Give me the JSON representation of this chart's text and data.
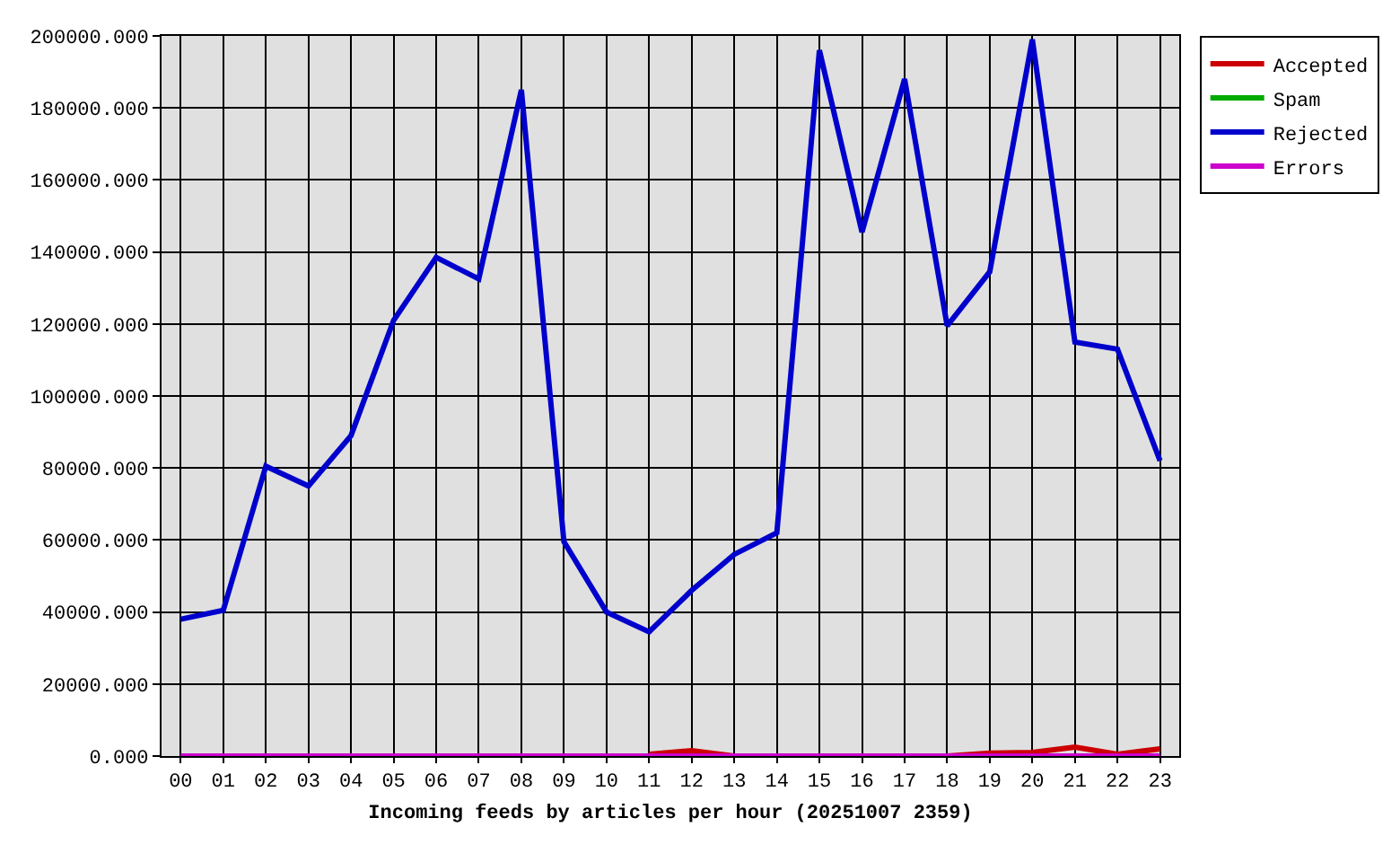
{
  "chart_data": {
    "type": "line",
    "xlabel": "Incoming feeds by articles per hour (20251007 2359)",
    "categories": [
      "00",
      "01",
      "02",
      "03",
      "04",
      "05",
      "06",
      "07",
      "08",
      "09",
      "10",
      "11",
      "12",
      "13",
      "14",
      "15",
      "16",
      "17",
      "18",
      "19",
      "20",
      "21",
      "22",
      "23"
    ],
    "series": [
      {
        "name": "Accepted",
        "color": "#cc0000",
        "values": [
          null,
          null,
          null,
          null,
          null,
          null,
          null,
          null,
          null,
          null,
          null,
          500,
          1500,
          0,
          null,
          null,
          null,
          null,
          0,
          800,
          1000,
          2500,
          500,
          2000
        ]
      },
      {
        "name": "Spam",
        "color": "#00aa00",
        "values": [
          null,
          null,
          null,
          null,
          null,
          null,
          null,
          null,
          null,
          null,
          null,
          null,
          null,
          null,
          null,
          null,
          null,
          null,
          null,
          null,
          null,
          null,
          null,
          null
        ]
      },
      {
        "name": "Rejected",
        "color": "#0000cc",
        "values": [
          38000,
          40500,
          80500,
          75000,
          89000,
          121000,
          138500,
          132500,
          185000,
          59500,
          40000,
          34500,
          46000,
          56000,
          62000,
          196000,
          145500,
          188000,
          119500,
          134500,
          199000,
          115000,
          113000,
          82000
        ]
      },
      {
        "name": "Errors",
        "color": "#cc00cc",
        "values": [
          0,
          0,
          0,
          0,
          0,
          0,
          0,
          0,
          0,
          0,
          0,
          0,
          0,
          0,
          0,
          0,
          0,
          0,
          0,
          0,
          0,
          0,
          0,
          0
        ]
      }
    ],
    "ylim": [
      0,
      200000
    ],
    "yticks": [
      {
        "value": 0,
        "label": "0.000"
      },
      {
        "value": 20000,
        "label": "20000.000"
      },
      {
        "value": 40000,
        "label": "40000.000"
      },
      {
        "value": 60000,
        "label": "60000.000"
      },
      {
        "value": 80000,
        "label": "80000.000"
      },
      {
        "value": 100000,
        "label": "100000.000"
      },
      {
        "value": 120000,
        "label": "120000.000"
      },
      {
        "value": 140000,
        "label": "140000.000"
      },
      {
        "value": 160000,
        "label": "160000.000"
      },
      {
        "value": 180000,
        "label": "180000.000"
      },
      {
        "value": 200000,
        "label": "200000.000"
      }
    ],
    "grid": true,
    "legend": "top right",
    "marker": "none",
    "line_style": "solid"
  }
}
